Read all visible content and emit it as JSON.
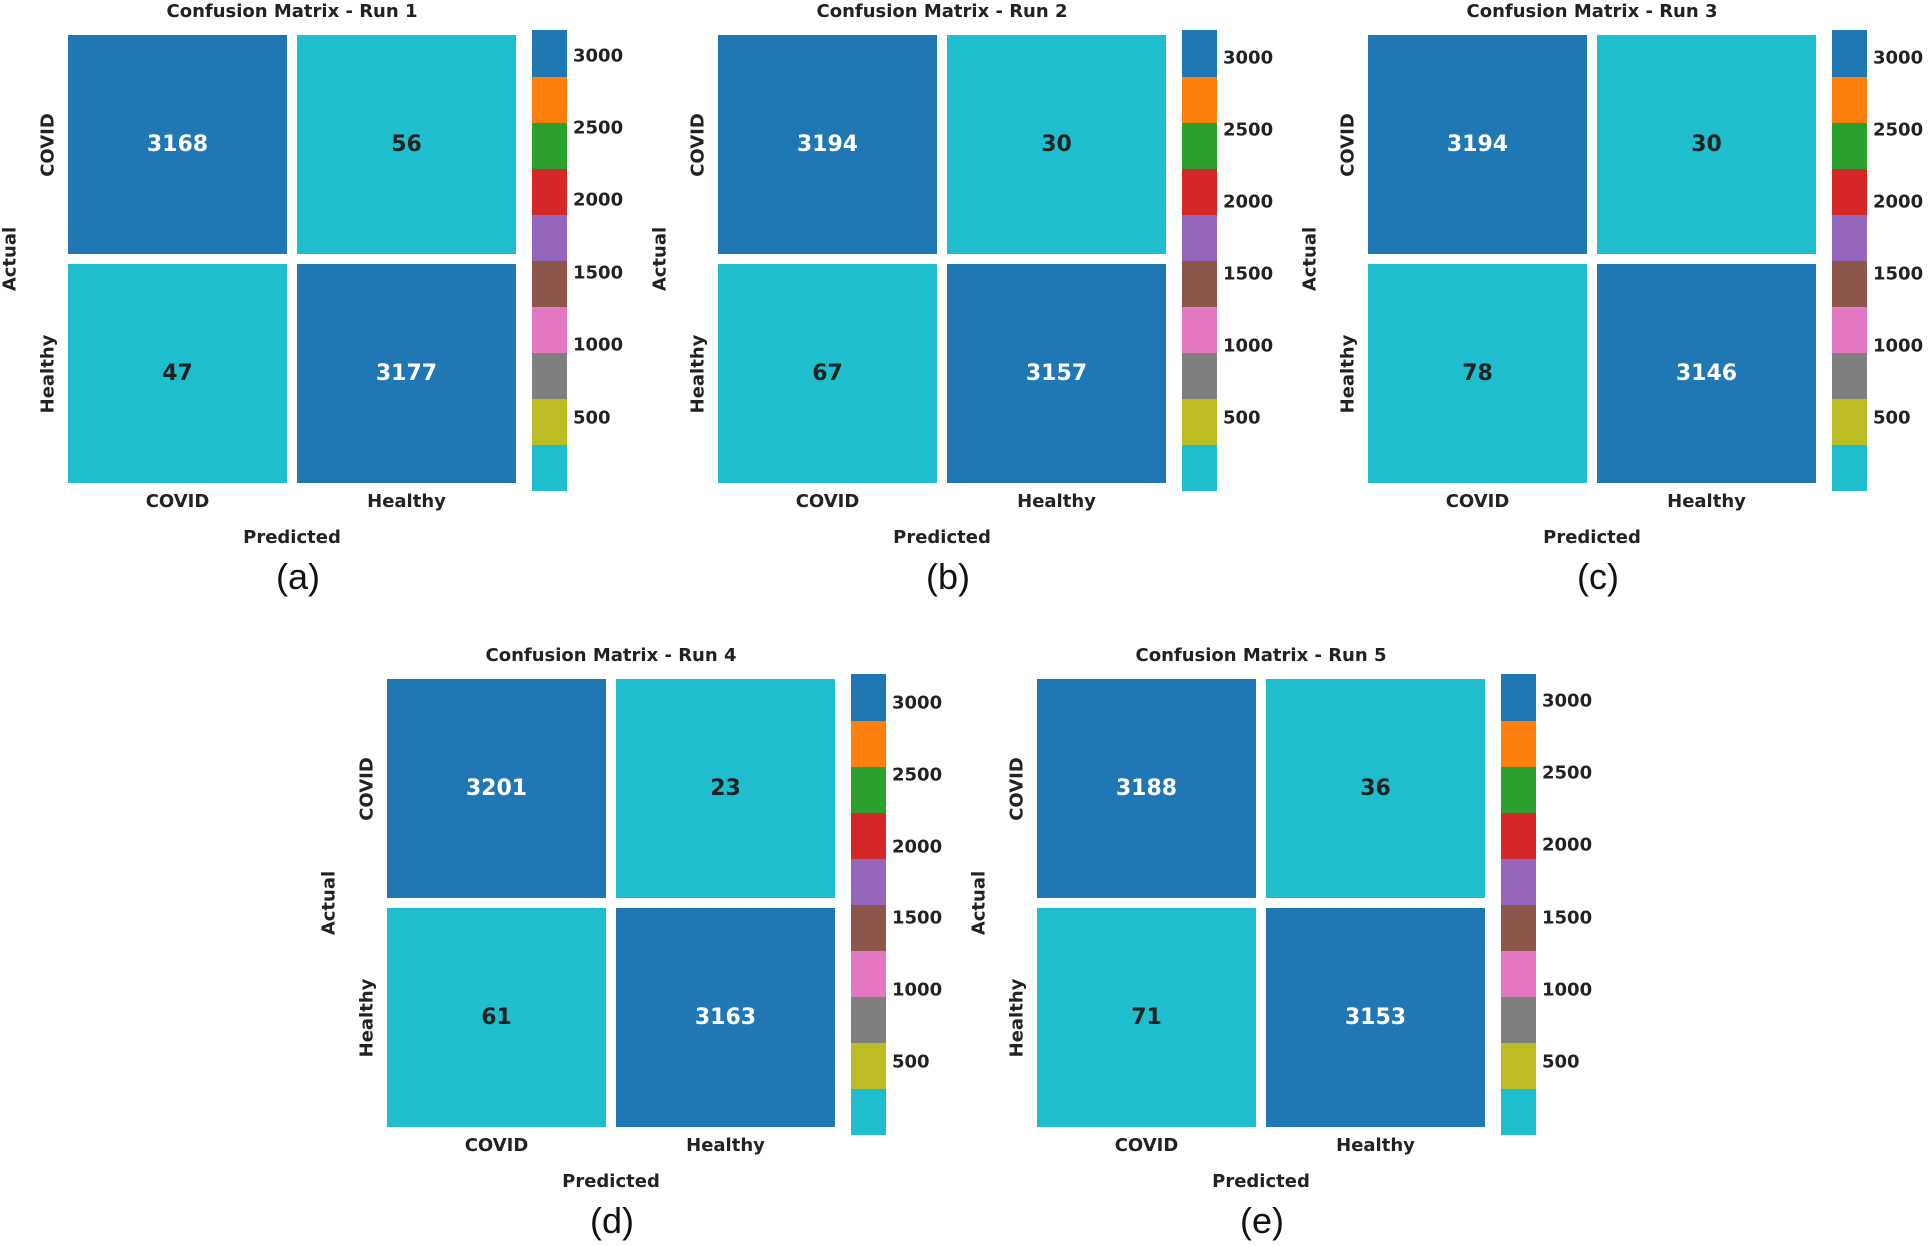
{
  "chart_data": [
    {
      "type": "heatmap",
      "title": "Confusion Matrix - Run 1",
      "panel_label": "(a)",
      "xlabel": "Predicted",
      "ylabel": "Actual",
      "x_categories": [
        "COVID",
        "Healthy"
      ],
      "y_categories": [
        "COVID",
        "Healthy"
      ],
      "matrix": [
        [
          3168,
          56
        ],
        [
          47,
          3177
        ]
      ],
      "colorbar_ticks": [
        500,
        1000,
        1500,
        2000,
        2500,
        3000
      ],
      "colorbar_range": [
        0,
        3177
      ]
    },
    {
      "type": "heatmap",
      "title": "Confusion Matrix - Run 2",
      "panel_label": "(b)",
      "xlabel": "Predicted",
      "ylabel": "Actual",
      "x_categories": [
        "COVID",
        "Healthy"
      ],
      "y_categories": [
        "COVID",
        "Healthy"
      ],
      "matrix": [
        [
          3194,
          30
        ],
        [
          67,
          3157
        ]
      ],
      "colorbar_ticks": [
        500,
        1000,
        1500,
        2000,
        2500,
        3000
      ],
      "colorbar_range": [
        0,
        3194
      ]
    },
    {
      "type": "heatmap",
      "title": "Confusion Matrix - Run 3",
      "panel_label": "(c)",
      "xlabel": "Predicted",
      "ylabel": "Actual",
      "x_categories": [
        "COVID",
        "Healthy"
      ],
      "y_categories": [
        "COVID",
        "Healthy"
      ],
      "matrix": [
        [
          3194,
          30
        ],
        [
          78,
          3146
        ]
      ],
      "colorbar_ticks": [
        500,
        1000,
        1500,
        2000,
        2500,
        3000
      ],
      "colorbar_range": [
        0,
        3194
      ]
    },
    {
      "type": "heatmap",
      "title": "Confusion Matrix - Run 4",
      "panel_label": "(d)",
      "xlabel": "Predicted",
      "ylabel": "Actual",
      "x_categories": [
        "COVID",
        "Healthy"
      ],
      "y_categories": [
        "COVID",
        "Healthy"
      ],
      "matrix": [
        [
          3201,
          23
        ],
        [
          61,
          3163
        ]
      ],
      "colorbar_ticks": [
        500,
        1000,
        1500,
        2000,
        2500,
        3000
      ],
      "colorbar_range": [
        0,
        3201
      ]
    },
    {
      "type": "heatmap",
      "title": "Confusion Matrix - Run 5",
      "panel_label": "(e)",
      "xlabel": "Predicted",
      "ylabel": "Actual",
      "x_categories": [
        "COVID",
        "Healthy"
      ],
      "y_categories": [
        "COVID",
        "Healthy"
      ],
      "matrix": [
        [
          3188,
          36
        ],
        [
          71,
          3153
        ]
      ],
      "colorbar_ticks": [
        500,
        1000,
        1500,
        2000,
        2500,
        3000
      ],
      "colorbar_range": [
        0,
        3188
      ]
    }
  ],
  "colormap": [
    "#1fbecf",
    "#bcbd22",
    "#7f7f7f",
    "#e377c2",
    "#8c564b",
    "#9467bd",
    "#d62728",
    "#2ca02c",
    "#ff7f0e",
    "#1f77b4"
  ]
}
